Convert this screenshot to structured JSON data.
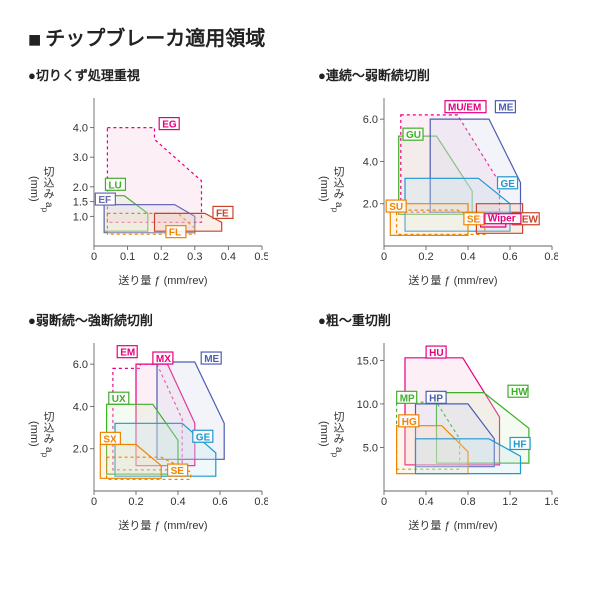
{
  "main_title": "チップブレーカ適用領域",
  "main_square": "■",
  "xlabel": "送り量 ƒ (mm/rev)",
  "ylabel": "切込み ap (mm)",
  "axis_color": "#555555",
  "label_fontsize": 11,
  "panels": [
    {
      "title": "●切りくず処理重視",
      "xlim": [
        0,
        0.5
      ],
      "xticks": [
        0,
        0.1,
        0.2,
        0.3,
        0.4,
        0.5
      ],
      "ylim": [
        0,
        5.0
      ],
      "yticks": [
        1.0,
        1.5,
        2.0,
        3.0,
        4.0
      ],
      "regions": [
        {
          "name": "EG",
          "label": "EG",
          "color": "#e6007e",
          "fill": "#f6c5df",
          "dashed": true,
          "points": [
            [
              0.04,
              4.0
            ],
            [
              0.18,
              4.0
            ],
            [
              0.18,
              3.6
            ],
            [
              0.32,
              2.2
            ],
            [
              0.32,
              0.8
            ],
            [
              0.04,
              0.8
            ]
          ],
          "lx": 0.2,
          "ly": 4.0
        },
        {
          "name": "LU",
          "label": "LU",
          "color": "#3fae2a",
          "fill": "#d9f0c8",
          "dashed": false,
          "points": [
            [
              0.03,
              1.7
            ],
            [
              0.09,
              1.7
            ],
            [
              0.16,
              1.1
            ],
            [
              0.16,
              0.5
            ],
            [
              0.03,
              0.5
            ]
          ],
          "lx": 0.04,
          "ly": 1.95
        },
        {
          "name": "EF",
          "label": "EF",
          "color": "#6a6ab0",
          "fill": "#d6d6ec",
          "dashed": false,
          "points": [
            [
              0.03,
              1.4
            ],
            [
              0.24,
              1.4
            ],
            [
              0.3,
              1.0
            ],
            [
              0.3,
              0.45
            ],
            [
              0.03,
              0.45
            ]
          ],
          "lx": 0.01,
          "ly": 1.45
        },
        {
          "name": "FL",
          "label": "FL",
          "color": "#f08400",
          "fill": "#fde0b7",
          "dashed": true,
          "points": [
            [
              0.04,
              1.1
            ],
            [
              0.25,
              1.1
            ],
            [
              0.3,
              0.6
            ],
            [
              0.3,
              0.4
            ],
            [
              0.04,
              0.4
            ]
          ],
          "lx": 0.22,
          "ly": 0.35
        },
        {
          "name": "FE",
          "label": "FE",
          "color": "#c8442a",
          "fill": "#f0c4b4",
          "dashed": false,
          "points": [
            [
              0.18,
              1.1
            ],
            [
              0.33,
              1.1
            ],
            [
              0.38,
              0.8
            ],
            [
              0.38,
              0.5
            ],
            [
              0.18,
              0.5
            ]
          ],
          "lx": 0.36,
          "ly": 1.0
        }
      ]
    },
    {
      "title": "●連続～弱断続切削",
      "xlim": [
        0,
        0.8
      ],
      "xticks": [
        0,
        0.2,
        0.4,
        0.6,
        0.8
      ],
      "ylim": [
        0,
        7.0
      ],
      "yticks": [
        2.0,
        4.0,
        6.0
      ],
      "regions": [
        {
          "name": "GU",
          "label": "GU",
          "color": "#3fae2a",
          "fill": "#d9f0c8",
          "dashed": false,
          "points": [
            [
              0.07,
              5.2
            ],
            [
              0.25,
              5.2
            ],
            [
              0.42,
              2.6
            ],
            [
              0.42,
              1.5
            ],
            [
              0.07,
              1.5
            ]
          ],
          "lx": 0.1,
          "ly": 5.1
        },
        {
          "name": "MU/EM",
          "label": "MU/EM",
          "color": "#e6007e",
          "fill": "#f6c5df",
          "dashed": true,
          "points": [
            [
              0.08,
              6.2
            ],
            [
              0.35,
              6.2
            ],
            [
              0.55,
              3.0
            ],
            [
              0.55,
              1.6
            ],
            [
              0.08,
              1.6
            ]
          ],
          "lx": 0.3,
          "ly": 6.4
        },
        {
          "name": "ME",
          "label": "ME",
          "color": "#4d5db0",
          "fill": "#d0d6ee",
          "dashed": false,
          "points": [
            [
              0.22,
              6.0
            ],
            [
              0.5,
              6.0
            ],
            [
              0.65,
              3.0
            ],
            [
              0.65,
              1.6
            ],
            [
              0.22,
              1.6
            ]
          ],
          "lx": 0.54,
          "ly": 6.4
        },
        {
          "name": "GE",
          "label": "GE",
          "color": "#1f97cf",
          "fill": "#c6e6f2",
          "dashed": false,
          "points": [
            [
              0.1,
              3.2
            ],
            [
              0.45,
              3.2
            ],
            [
              0.6,
              2.0
            ],
            [
              0.6,
              0.7
            ],
            [
              0.1,
              0.7
            ]
          ],
          "lx": 0.55,
          "ly": 2.8
        },
        {
          "name": "SU",
          "label": "SU",
          "color": "#f08400",
          "fill": "#fde0b7",
          "dashed": false,
          "points": [
            [
              0.03,
              2.0
            ],
            [
              0.4,
              2.0
            ],
            [
              0.4,
              0.5
            ],
            [
              0.03,
              0.5
            ]
          ],
          "lx": 0.02,
          "ly": 1.7
        },
        {
          "name": "SE",
          "label": "SE",
          "color": "#f08400",
          "fill": "none",
          "dashed": true,
          "points": [
            [
              0.06,
              1.7
            ],
            [
              0.35,
              1.7
            ],
            [
              0.48,
              1.1
            ],
            [
              0.48,
              0.55
            ],
            [
              0.06,
              0.55
            ]
          ],
          "lx": 0.39,
          "ly": 1.1
        },
        {
          "name": "SEW",
          "label": "SEW",
          "color": "#c8442a",
          "fill": "#f0c4b4",
          "dashed": false,
          "points": [
            [
              0.44,
              2.0
            ],
            [
              0.66,
              2.0
            ],
            [
              0.66,
              0.6
            ],
            [
              0.44,
              0.6
            ]
          ],
          "lx": 0.62,
          "ly": 1.1
        },
        {
          "name": "Wiper",
          "label": "Wiper",
          "color": "#e6007e",
          "fill": "#f6c5df",
          "dashed": false,
          "points": [
            [
              0.46,
              1.4
            ],
            [
              0.58,
              1.4
            ],
            [
              0.58,
              0.9
            ],
            [
              0.46,
              0.9
            ]
          ],
          "lx": 0.49,
          "ly": 1.15,
          "small": true
        }
      ]
    },
    {
      "title": "●弱断続～強断続切削",
      "xlim": [
        0,
        0.8
      ],
      "xticks": [
        0,
        0.2,
        0.4,
        0.6,
        0.8
      ],
      "ylim": [
        0,
        7.0
      ],
      "yticks": [
        2.0,
        4.0,
        6.0
      ],
      "regions": [
        {
          "name": "EM",
          "label": "EM",
          "color": "#e6007e",
          "fill": "none",
          "dashed": true,
          "points": [
            [
              0.09,
              5.8
            ],
            [
              0.22,
              5.8
            ],
            [
              0.22,
              6.0
            ],
            [
              0.3,
              6.0
            ],
            [
              0.42,
              3.4
            ],
            [
              0.42,
              1.0
            ],
            [
              0.09,
              1.0
            ]
          ],
          "lx": 0.12,
          "ly": 6.4
        },
        {
          "name": "MX",
          "label": "MX",
          "color": "#e6007e",
          "fill": "#f6c5df",
          "dashed": false,
          "points": [
            [
              0.2,
              6.0
            ],
            [
              0.35,
              6.0
            ],
            [
              0.48,
              3.2
            ],
            [
              0.48,
              1.2
            ],
            [
              0.2,
              1.2
            ]
          ],
          "lx": 0.29,
          "ly": 6.1
        },
        {
          "name": "ME",
          "label": "ME",
          "color": "#4d5db0",
          "fill": "#d0d6ee",
          "dashed": false,
          "points": [
            [
              0.3,
              6.1
            ],
            [
              0.48,
              6.1
            ],
            [
              0.62,
              3.2
            ],
            [
              0.62,
              1.5
            ],
            [
              0.3,
              1.5
            ]
          ],
          "lx": 0.52,
          "ly": 6.1
        },
        {
          "name": "UX",
          "label": "UX",
          "color": "#3fae2a",
          "fill": "#d9f0c8",
          "dashed": false,
          "points": [
            [
              0.06,
              4.1
            ],
            [
              0.28,
              4.1
            ],
            [
              0.4,
              2.4
            ],
            [
              0.4,
              0.8
            ],
            [
              0.06,
              0.8
            ]
          ],
          "lx": 0.08,
          "ly": 4.2
        },
        {
          "name": "GE",
          "label": "GE",
          "color": "#1f97cf",
          "fill": "#c6e6f2",
          "dashed": false,
          "points": [
            [
              0.1,
              3.2
            ],
            [
              0.42,
              3.2
            ],
            [
              0.58,
              1.8
            ],
            [
              0.58,
              0.7
            ],
            [
              0.1,
              0.7
            ]
          ],
          "lx": 0.48,
          "ly": 2.4
        },
        {
          "name": "SX",
          "label": "SX",
          "color": "#f08400",
          "fill": "#fde0b7",
          "dashed": false,
          "points": [
            [
              0.03,
              2.2
            ],
            [
              0.2,
              2.2
            ],
            [
              0.32,
              1.2
            ],
            [
              0.32,
              0.6
            ],
            [
              0.03,
              0.6
            ]
          ],
          "lx": 0.04,
          "ly": 2.3
        },
        {
          "name": "SE",
          "label": "SE",
          "color": "#f08400",
          "fill": "none",
          "dashed": true,
          "points": [
            [
              0.06,
              1.6
            ],
            [
              0.32,
              1.6
            ],
            [
              0.46,
              0.9
            ],
            [
              0.46,
              0.55
            ],
            [
              0.06,
              0.55
            ]
          ],
          "lx": 0.36,
          "ly": 0.8
        }
      ]
    },
    {
      "title": "●粗～重切削",
      "xlim": [
        0,
        1.6
      ],
      "xticks": [
        0,
        0.4,
        0.8,
        1.2,
        1.6
      ],
      "ylim": [
        0,
        17.0
      ],
      "yticks": [
        5.0,
        10.0,
        15.0
      ],
      "regions": [
        {
          "name": "HU",
          "label": "HU",
          "color": "#e6007e",
          "fill": "#f6c5df",
          "dashed": false,
          "points": [
            [
              0.2,
              15.3
            ],
            [
              0.75,
              15.3
            ],
            [
              1.1,
              8.5
            ],
            [
              1.1,
              3.0
            ],
            [
              0.2,
              3.0
            ]
          ],
          "lx": 0.42,
          "ly": 15.5
        },
        {
          "name": "HW",
          "label": "HW",
          "color": "#3fae2a",
          "fill": "#d9f0c8",
          "dashed": false,
          "points": [
            [
              0.5,
              11.3
            ],
            [
              0.95,
              11.3
            ],
            [
              1.38,
              7.2
            ],
            [
              1.38,
              3.2
            ],
            [
              0.5,
              3.2
            ]
          ],
          "lx": 1.2,
          "ly": 11.0
        },
        {
          "name": "MP",
          "label": "MP",
          "color": "#3fae2a",
          "fill": "none",
          "dashed": true,
          "points": [
            [
              0.12,
              10.2
            ],
            [
              0.5,
              10.2
            ],
            [
              0.72,
              6.0
            ],
            [
              0.72,
              2.5
            ],
            [
              0.12,
              2.5
            ]
          ],
          "lx": 0.14,
          "ly": 10.3
        },
        {
          "name": "HP",
          "label": "HP",
          "color": "#4d5db0",
          "fill": "#d0d6ee",
          "dashed": false,
          "points": [
            [
              0.3,
              10.0
            ],
            [
              0.8,
              10.0
            ],
            [
              1.05,
              6.0
            ],
            [
              1.05,
              2.8
            ],
            [
              0.3,
              2.8
            ]
          ],
          "lx": 0.42,
          "ly": 10.3
        },
        {
          "name": "HG",
          "label": "HG",
          "color": "#f08400",
          "fill": "#fde0b7",
          "dashed": false,
          "points": [
            [
              0.12,
              7.5
            ],
            [
              0.55,
              7.5
            ],
            [
              0.8,
              4.5
            ],
            [
              0.8,
              2.0
            ],
            [
              0.12,
              2.0
            ]
          ],
          "lx": 0.16,
          "ly": 7.6
        },
        {
          "name": "HF",
          "label": "HF",
          "color": "#1f97cf",
          "fill": "#c6e6f2",
          "dashed": false,
          "points": [
            [
              0.3,
              6.0
            ],
            [
              1.0,
              6.0
            ],
            [
              1.3,
              4.0
            ],
            [
              1.3,
              2.0
            ],
            [
              0.3,
              2.0
            ]
          ],
          "lx": 1.22,
          "ly": 5.0
        }
      ]
    }
  ]
}
